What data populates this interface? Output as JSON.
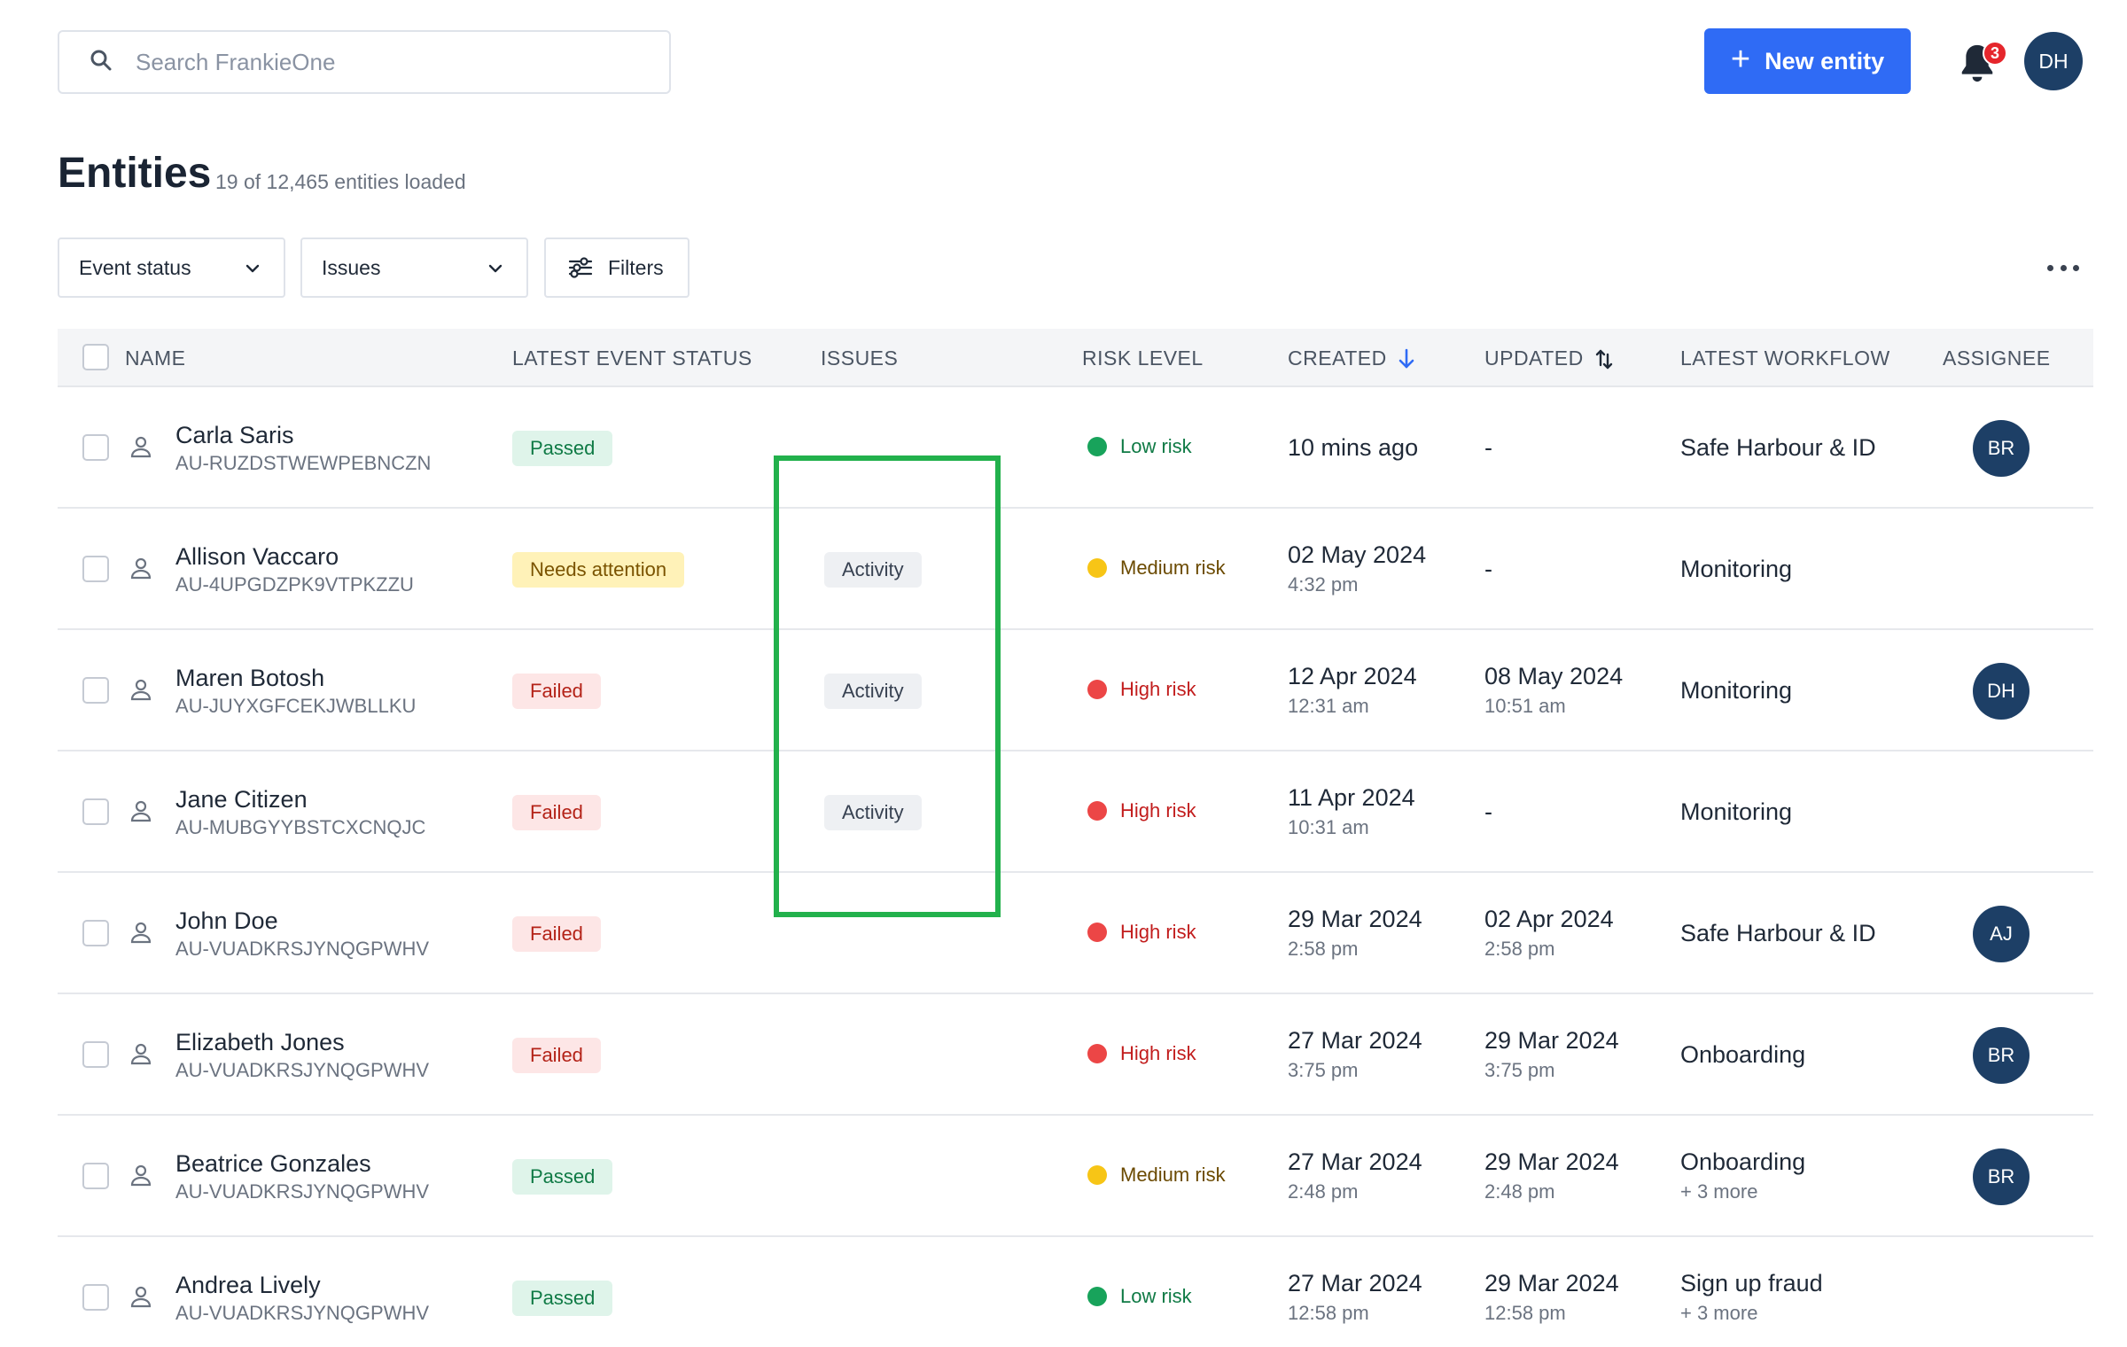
{
  "search": {
    "placeholder": "Search FrankieOne"
  },
  "header": {
    "new_button_label": "New entity",
    "notification_count": "3",
    "user_initials": "DH"
  },
  "page": {
    "title": "Entities",
    "subtitle": "19 of 12,465 entities loaded"
  },
  "filters": {
    "event_status": "Event status",
    "issues": "Issues",
    "filters": "Filters"
  },
  "columns": {
    "name": "NAME",
    "latest_event_status": "LATEST EVENT STATUS",
    "issues": "ISSUES",
    "risk_level": "RISK LEVEL",
    "created": "CREATED",
    "updated": "UPDATED",
    "latest_workflow": "LATEST WORKFLOW",
    "assignee": "ASSIGNEE"
  },
  "rows": [
    {
      "name": "Carla Saris",
      "id": "AU-RUZDSTWEWPEBNCZN",
      "status": "Passed",
      "status_kind": "passed",
      "issue": "",
      "risk": "Low risk",
      "risk_kind": "low",
      "created": "10 mins ago",
      "created_time": "",
      "updated": "-",
      "updated_time": "",
      "workflow": "Safe Harbour & ID",
      "workflow_more": "",
      "assignee": "BR"
    },
    {
      "name": "Allison Vaccaro",
      "id": "AU-4UPGDZPK9VTPKZZU",
      "status": "Needs attention",
      "status_kind": "needs",
      "issue": "Activity",
      "risk": "Medium risk",
      "risk_kind": "medium",
      "created": "02 May 2024",
      "created_time": "4:32 pm",
      "updated": "-",
      "updated_time": "",
      "workflow": "Monitoring",
      "workflow_more": "",
      "assignee": ""
    },
    {
      "name": "Maren Botosh",
      "id": "AU-JUYXGFCEKJWBLLKU",
      "status": "Failed",
      "status_kind": "failed",
      "issue": "Activity",
      "risk": "High risk",
      "risk_kind": "high",
      "created": "12 Apr 2024",
      "created_time": "12:31 am",
      "updated": "08 May 2024",
      "updated_time": "10:51 am",
      "workflow": "Monitoring",
      "workflow_more": "",
      "assignee": "DH"
    },
    {
      "name": "Jane Citizen",
      "id": "AU-MUBGYYBSTCXCNQJC",
      "status": "Failed",
      "status_kind": "failed",
      "issue": "Activity",
      "risk": "High risk",
      "risk_kind": "high",
      "created": "11 Apr 2024",
      "created_time": "10:31 am",
      "updated": "-",
      "updated_time": "",
      "workflow": "Monitoring",
      "workflow_more": "",
      "assignee": ""
    },
    {
      "name": "John Doe",
      "id": "AU-VUADKRSJYNQGPWHV",
      "status": "Failed",
      "status_kind": "failed",
      "issue": "",
      "risk": "High risk",
      "risk_kind": "high",
      "created": "29 Mar 2024",
      "created_time": "2:58 pm",
      "updated": "02 Apr 2024",
      "updated_time": "2:58 pm",
      "workflow": "Safe Harbour & ID",
      "workflow_more": "",
      "assignee": "AJ"
    },
    {
      "name": "Elizabeth Jones",
      "id": "AU-VUADKRSJYNQGPWHV",
      "status": "Failed",
      "status_kind": "failed",
      "issue": "",
      "risk": "High risk",
      "risk_kind": "high",
      "created": "27 Mar 2024",
      "created_time": "3:75 pm",
      "updated": "29 Mar 2024",
      "updated_time": "3:75 pm",
      "workflow": "Onboarding",
      "workflow_more": "",
      "assignee": "BR"
    },
    {
      "name": "Beatrice Gonzales",
      "id": "AU-VUADKRSJYNQGPWHV",
      "status": "Passed",
      "status_kind": "passed",
      "issue": "",
      "risk": "Medium risk",
      "risk_kind": "medium",
      "created": "27 Mar 2024",
      "created_time": "2:48 pm",
      "updated": "29 Mar 2024",
      "updated_time": "2:48 pm",
      "workflow": "Onboarding",
      "workflow_more": "+ 3 more",
      "assignee": "BR"
    },
    {
      "name": "Andrea Lively",
      "id": "AU-VUADKRSJYNQGPWHV",
      "status": "Passed",
      "status_kind": "passed",
      "issue": "",
      "risk": "Low risk",
      "risk_kind": "low",
      "created": "27 Mar 2024",
      "created_time": "12:58 pm",
      "updated": "29 Mar 2024",
      "updated_time": "12:58 pm",
      "workflow": "Sign up fraud",
      "workflow_more": "+ 3 more",
      "assignee": ""
    }
  ],
  "icons": {
    "search": "search-icon",
    "plus": "plus-icon",
    "bell": "bell-icon",
    "chevron": "chevron-down-icon",
    "filters": "sliders-icon",
    "more": "more-horizontal-icon",
    "sort_desc": "arrow-down-icon",
    "sort_both": "sort-arrows-icon",
    "person": "person-icon"
  },
  "colors": {
    "primary": "#2f6bf5",
    "avatar": "#1d3f66",
    "highlight_box": "#22b14c",
    "passed": "#0f7a45",
    "needs_attention": "#7a5300",
    "failed": "#b42318"
  }
}
